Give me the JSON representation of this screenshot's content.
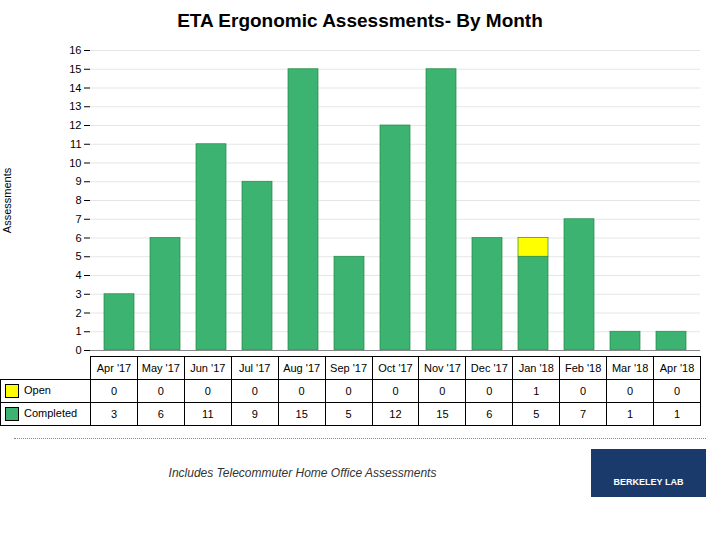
{
  "chart_data": {
    "type": "bar",
    "title": "ETA Ergonomic Assessments- By Month",
    "ylabel": "Assessments",
    "categories": [
      "Apr '17",
      "May '17",
      "Jun '17",
      "Jul '17",
      "Aug '17",
      "Sep '17",
      "Oct '17",
      "Nov '17",
      "Dec '17",
      "Jan '18",
      "Feb '18",
      "Mar '18",
      "Apr '18"
    ],
    "series": [
      {
        "name": "Completed",
        "color": "#3CB371",
        "values": [
          3,
          6,
          11,
          9,
          15,
          5,
          12,
          15,
          6,
          5,
          7,
          1,
          1
        ]
      },
      {
        "name": "Open",
        "color": "#FFFF00",
        "values": [
          0,
          0,
          0,
          0,
          0,
          0,
          0,
          0,
          0,
          1,
          0,
          0,
          0
        ]
      }
    ],
    "stacked": true,
    "ylim": [
      0,
      16
    ],
    "yticks": [
      0,
      1,
      2,
      3,
      4,
      5,
      6,
      7,
      8,
      9,
      10,
      11,
      12,
      13,
      14,
      15,
      16
    ],
    "grid": true,
    "data_labels": true,
    "annotations": [
      "Includes Telecommuter Home Office Assessments",
      "BERKELEY LAB"
    ]
  }
}
